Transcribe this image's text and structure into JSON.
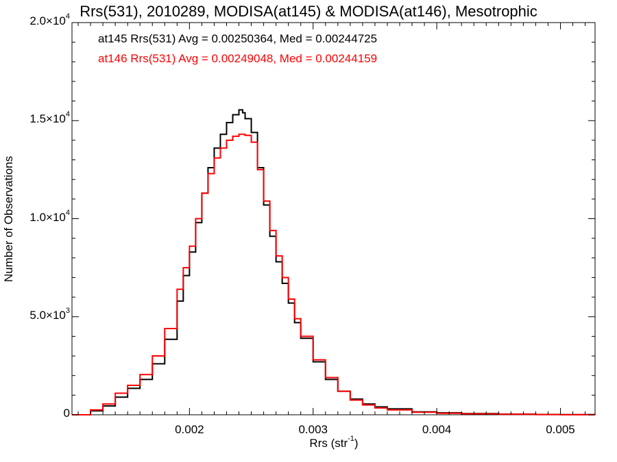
{
  "chart_data": {
    "type": "line",
    "title": "Rrs(531), 2010289, MODISA(at145) & MODISA(at146), Mesotrophic",
    "xlabel": "Rrs (str",
    "xlabel_sup": "-1",
    "xlabel_close": ")",
    "ylabel": "Number of Observations",
    "xlim": [
      0.00105,
      0.00528
    ],
    "ylim": [
      0,
      20000
    ],
    "x_ticks": [
      {
        "v": 0.002,
        "label": "0.002"
      },
      {
        "v": 0.003,
        "label": "0.003"
      },
      {
        "v": 0.004,
        "label": "0.004"
      },
      {
        "v": 0.005,
        "label": "0.005"
      }
    ],
    "y_ticks": [
      {
        "v": 0,
        "base": "0",
        "exp": ""
      },
      {
        "v": 5000,
        "base": "5.0×10",
        "exp": "3"
      },
      {
        "v": 10000,
        "base": "1.0×10",
        "exp": "4"
      },
      {
        "v": 15000,
        "base": "1.5×10",
        "exp": "4"
      },
      {
        "v": 20000,
        "base": "2.0×10",
        "exp": "4"
      }
    ],
    "legend": [
      {
        "text": "at145 Rrs(531) Avg = 0.00250364, Med = 0.00244725",
        "color": "#000000"
      },
      {
        "text": "at146 Rrs(531) Avg = 0.00249048, Med = 0.00244159",
        "color": "#ff0000"
      }
    ],
    "series": [
      {
        "color": "#000000",
        "x": [
          0.00105,
          0.0012,
          0.0013,
          0.0014,
          0.0015,
          0.0016,
          0.0017,
          0.0018,
          0.0019,
          0.00195,
          0.002,
          0.00205,
          0.0021,
          0.00215,
          0.0022,
          0.00225,
          0.0023,
          0.00235,
          0.0024,
          0.00243,
          0.00245,
          0.0025,
          0.00255,
          0.0026,
          0.00265,
          0.0027,
          0.00275,
          0.0028,
          0.00285,
          0.0029,
          0.003,
          0.0031,
          0.0032,
          0.0033,
          0.0034,
          0.0035,
          0.0036,
          0.0038,
          0.004,
          0.0042,
          0.0045,
          0.0048,
          0.005,
          0.00528
        ],
        "values": [
          0,
          200,
          450,
          900,
          1350,
          1800,
          2600,
          3850,
          5800,
          7100,
          8300,
          9800,
          11300,
          12600,
          13600,
          14300,
          14900,
          15300,
          15550,
          15400,
          15100,
          14400,
          12600,
          10700,
          9100,
          7800,
          6700,
          5700,
          4700,
          3900,
          2700,
          1800,
          1200,
          800,
          550,
          400,
          300,
          150,
          100,
          60,
          30,
          15,
          8,
          0
        ]
      },
      {
        "color": "#ff0000",
        "x": [
          0.00105,
          0.0012,
          0.0013,
          0.0014,
          0.0015,
          0.0016,
          0.0017,
          0.0018,
          0.0019,
          0.00195,
          0.002,
          0.00205,
          0.0021,
          0.00215,
          0.0022,
          0.00225,
          0.0023,
          0.00235,
          0.0024,
          0.00243,
          0.00245,
          0.0025,
          0.00255,
          0.0026,
          0.00265,
          0.0027,
          0.00275,
          0.0028,
          0.00285,
          0.0029,
          0.003,
          0.0031,
          0.0032,
          0.0033,
          0.0034,
          0.0035,
          0.0036,
          0.0038,
          0.004,
          0.0042,
          0.0045,
          0.0048,
          0.005,
          0.00528
        ],
        "values": [
          0,
          250,
          550,
          1100,
          1500,
          2050,
          3000,
          4400,
          6400,
          7500,
          8600,
          10000,
          11300,
          12300,
          13100,
          13600,
          14000,
          14200,
          14300,
          14300,
          14250,
          13900,
          12500,
          10900,
          9400,
          8100,
          7000,
          5900,
          4900,
          4000,
          2800,
          1900,
          1200,
          750,
          500,
          350,
          250,
          130,
          80,
          50,
          25,
          12,
          6,
          0
        ]
      }
    ]
  }
}
